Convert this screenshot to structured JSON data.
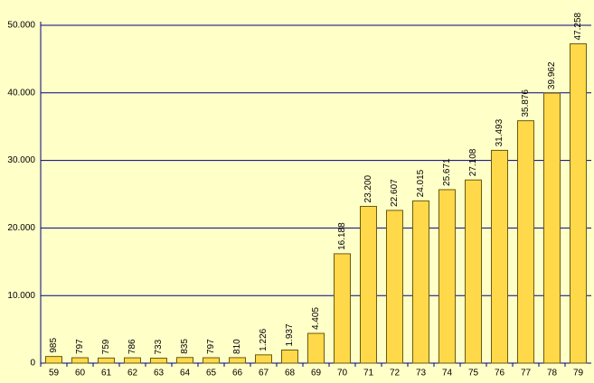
{
  "chart_data": {
    "type": "bar",
    "categories": [
      "59",
      "60",
      "61",
      "62",
      "63",
      "64",
      "65",
      "66",
      "67",
      "68",
      "69",
      "70",
      "71",
      "72",
      "73",
      "74",
      "75",
      "76",
      "77",
      "78",
      "79"
    ],
    "values": [
      985,
      797,
      759,
      786,
      733,
      835,
      797,
      810,
      1226,
      1937,
      4405,
      16188,
      23200,
      22607,
      24015,
      25671,
      27108,
      31493,
      35876,
      39962,
      47258
    ],
    "value_labels": [
      "985",
      "797",
      "759",
      "786",
      "733",
      "835",
      "797",
      "810",
      "1.226",
      "1.937",
      "4.405",
      "16.188",
      "23.200",
      "22.607",
      "24.015",
      "25.671",
      "27.108",
      "31.493",
      "35.876",
      "39.962",
      "47.258"
    ],
    "color": "#ffd94a",
    "ylim": [
      0,
      50000
    ],
    "yticks": [
      0,
      {
        "value": 10000,
        "label": "10.000"
      },
      {
        "value": 20000,
        "label": "20.000"
      },
      {
        "value": 30000,
        "label": "30.000"
      },
      {
        "value": 40000,
        "label": "40.000"
      },
      {
        "value": 50000,
        "label": "50.000"
      }
    ],
    "grid": true
  }
}
